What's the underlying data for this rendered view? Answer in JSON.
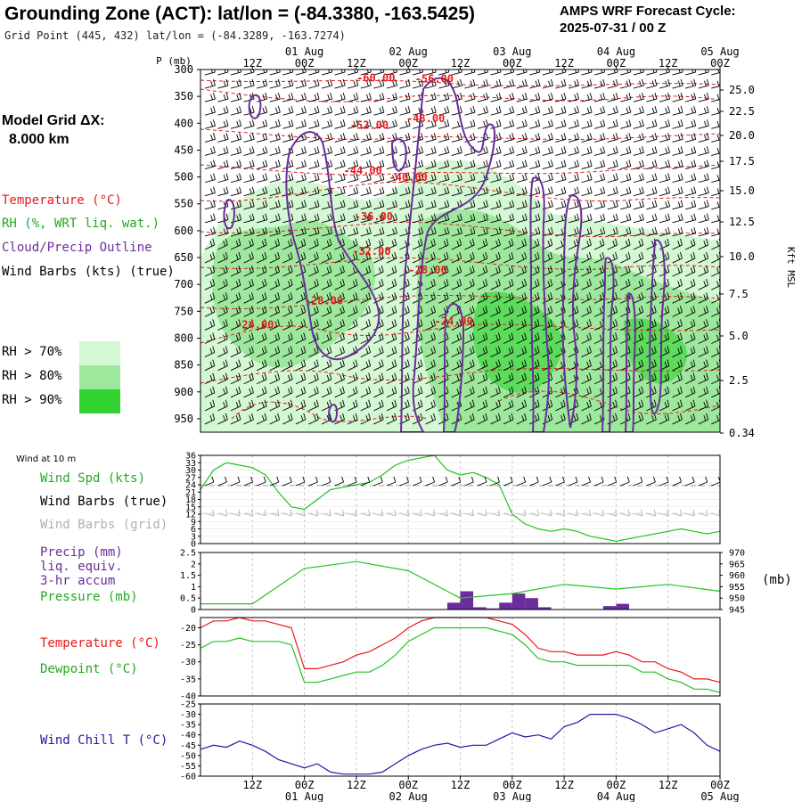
{
  "header": {
    "title": "Grounding Zone (ACT):  lat/lon = (-84.3380, -163.5425)",
    "subtitle": "Grid Point (445, 432) lat/lon = (-84.3289, -163.7274)",
    "cycle_line1": "AMPS WRF Forecast Cycle:",
    "cycle_line2": "2025-07-31 / 00  Z"
  },
  "legend": {
    "grid_dx_line1": "Model Grid ΔX:",
    "grid_dx_line2": "8.000 km",
    "temperature": "Temperature (°C)",
    "rh": "RH (%, WRT liq. wat.)",
    "cloud": "Cloud/Precip Outline",
    "wind": "Wind Barbs (kts) (true)",
    "rh70": "RH > 70%",
    "rh80": "RH > 80%",
    "rh90": "RH > 90%"
  },
  "colors": {
    "temperature": "#e8191b",
    "rh70": "#d4f7d4",
    "rh80": "#9ee89e",
    "rh90": "#32d232",
    "cloud": "#6a2d9b",
    "wind_spd": "#22c322",
    "dewpoint": "#22c322",
    "wind_chill": "#1a1aa8",
    "precip_bar": "#6a2d9b",
    "grid_barbs": "#b0b0b0"
  },
  "axis_labels": {
    "pressure": "P (mb)",
    "kft": "Kft MSL",
    "mb": "(mb)"
  },
  "time_ticks": {
    "hours": [
      "12Z",
      "00Z",
      "12Z",
      "00Z",
      "12Z",
      "00Z",
      "12Z",
      "00Z",
      "12Z",
      "00Z"
    ],
    "dates": [
      "01 Aug",
      "02 Aug",
      "03 Aug",
      "04 Aug",
      "05 Aug"
    ]
  },
  "panel_labels": {
    "wind10m": "Wind at 10 m",
    "wind_spd": "Wind Spd (kts)",
    "wind_barbs_true": "Wind Barbs (true)",
    "wind_barbs_grid": "Wind Barbs (grid)",
    "precip_1": "Precip (mm)",
    "precip_2": "liq. equiv.",
    "precip_3": "3-hr accum",
    "pressure": "Pressure (mb)",
    "temperature": "Temperature (°C)",
    "dewpoint": "Dewpoint (°C)",
    "wind_chill": "Wind Chill T (°C)"
  },
  "chart_data": [
    {
      "type": "heatmap",
      "title": "Grounding Zone (ACT):  lat/lon = (-84.3380, -163.5425)",
      "y_left_ticks": [
        300,
        350,
        400,
        450,
        500,
        550,
        600,
        650,
        700,
        750,
        800,
        850,
        900,
        950
      ],
      "y_right_ticks": [
        "25.0",
        "22.5",
        "20.0",
        "17.5",
        "15.0",
        "12.5",
        "10.0",
        "7.5",
        "5.0",
        "2.5",
        "0.34"
      ],
      "ylim": [
        300,
        975
      ],
      "xlim_hours": [
        0,
        120
      ],
      "temperature_contour_labels": [
        {
          "text": "-60.00",
          "hour": 40.5,
          "p": 322
        },
        {
          "text": "-56.00",
          "hour": 54,
          "p": 324
        },
        {
          "text": "-52.00",
          "hour": 39,
          "p": 410
        },
        {
          "text": "-48.00",
          "hour": 52,
          "p": 398
        },
        {
          "text": "-44.00",
          "hour": 37.5,
          "p": 495
        },
        {
          "text": "-40.00",
          "hour": 48,
          "p": 507
        },
        {
          "text": "-36.00",
          "hour": 40,
          "p": 580
        },
        {
          "text": "-32.00",
          "hour": 39.5,
          "p": 645
        },
        {
          "text": "-28.00",
          "hour": 52.5,
          "p": 680
        },
        {
          "text": "-28.00",
          "hour": 28.5,
          "p": 737
        },
        {
          "text": "-24.00",
          "hour": 12.5,
          "p": 782
        },
        {
          "text": "-24.00",
          "hour": 58.5,
          "p": 775
        }
      ]
    },
    {
      "type": "line",
      "title": "Wind Spd (kts)",
      "x_hours": [
        0,
        3,
        6,
        9,
        12,
        15,
        18,
        21,
        24,
        27,
        30,
        33,
        36,
        39,
        42,
        45,
        48,
        51,
        54,
        57,
        60,
        63,
        66,
        69,
        72,
        75,
        78,
        81,
        84,
        87,
        90,
        93,
        96,
        99,
        102,
        105,
        108,
        111,
        114,
        117,
        120
      ],
      "series": [
        {
          "name": "Wind Spd (kts)",
          "values": [
            22,
            30,
            33,
            32,
            31,
            28,
            21,
            15,
            14,
            18,
            22,
            23,
            24,
            25,
            28,
            32,
            34,
            35,
            36,
            30,
            28,
            29,
            27,
            24,
            12,
            8,
            6,
            5,
            6,
            5,
            3,
            2,
            1,
            2,
            3,
            4,
            5,
            6,
            5,
            4,
            5
          ]
        }
      ],
      "y_ticks": [
        0,
        3,
        6,
        9,
        12,
        15,
        18,
        21,
        24,
        27,
        30,
        33,
        36
      ],
      "ylim": [
        0,
        36
      ]
    },
    {
      "type": "bar",
      "title": "Precip (mm)",
      "x_hours": [
        57,
        60,
        63,
        66,
        69,
        72,
        75,
        78,
        93,
        96
      ],
      "values": [
        0.3,
        0.8,
        0.1,
        0.05,
        0.3,
        0.7,
        0.5,
        0.1,
        0.15,
        0.25
      ],
      "y_ticks": [
        0.0,
        0.5,
        1.0,
        1.5,
        2.0,
        2.5
      ],
      "ylim": [
        0,
        2.5
      ]
    },
    {
      "type": "line",
      "title": "Pressure (mb)",
      "x_hours": [
        0,
        12,
        24,
        36,
        48,
        60,
        66,
        72,
        84,
        96,
        108,
        120
      ],
      "series": [
        {
          "name": "Pressure (mb)",
          "values": [
            947.5,
            947.5,
            963,
            966,
            962,
            950,
            951,
            952,
            956,
            954,
            956,
            953
          ]
        }
      ],
      "y_ticks": [
        945,
        950,
        955,
        960,
        965,
        970
      ],
      "ylim": [
        945,
        970
      ]
    },
    {
      "type": "line",
      "title": "Temperature (°C)",
      "x_hours": [
        0,
        3,
        6,
        9,
        12,
        15,
        18,
        21,
        24,
        27,
        30,
        33,
        36,
        39,
        42,
        45,
        48,
        51,
        54,
        57,
        60,
        63,
        66,
        69,
        72,
        75,
        78,
        81,
        84,
        87,
        90,
        93,
        96,
        99,
        102,
        105,
        108,
        111,
        114,
        117,
        120
      ],
      "series": [
        {
          "name": "Temperature (°C)",
          "values": [
            -20,
            -18,
            -18,
            -17,
            -18,
            -18,
            -19,
            -20,
            -32,
            -32,
            -31,
            -30,
            -28,
            -27,
            -25,
            -23,
            -20,
            -18,
            -17,
            -17,
            -17,
            -17,
            -17,
            -18,
            -19,
            -22,
            -26,
            -27,
            -27,
            -28,
            -28,
            -28,
            -27,
            -28,
            -30,
            -30,
            -32,
            -33,
            -35,
            -35,
            -36
          ]
        },
        {
          "name": "Dewpoint (°C)",
          "values": [
            -26,
            -24,
            -24,
            -23,
            -24,
            -24,
            -24,
            -25,
            -36,
            -36,
            -35,
            -34,
            -33,
            -33,
            -31,
            -28,
            -24,
            -22,
            -20,
            -20,
            -20,
            -20,
            -20,
            -21,
            -22,
            -25,
            -29,
            -30,
            -30,
            -31,
            -31,
            -31,
            -31,
            -31,
            -33,
            -33,
            -35,
            -36,
            -38,
            -38,
            -39
          ]
        }
      ],
      "y_ticks": [
        -40,
        -35,
        -30,
        -25,
        -20
      ],
      "ylim": [
        -40,
        -17
      ]
    },
    {
      "type": "line",
      "title": "Wind Chill T (°C)",
      "x_hours": [
        0,
        3,
        6,
        9,
        12,
        15,
        18,
        21,
        24,
        27,
        30,
        33,
        36,
        39,
        42,
        45,
        48,
        51,
        54,
        57,
        60,
        63,
        66,
        69,
        72,
        75,
        78,
        81,
        84,
        87,
        90,
        93,
        96,
        99,
        102,
        105,
        108,
        111,
        114,
        117,
        120
      ],
      "series": [
        {
          "name": "Wind Chill T (°C)",
          "values": [
            -47,
            -45,
            -46,
            -43,
            -45,
            -48,
            -52,
            -54,
            -56,
            -54,
            -58,
            -59,
            -59,
            -59,
            -58,
            -54,
            -50,
            -47,
            -45,
            -44,
            -46,
            -45,
            -45,
            -42,
            -39,
            -41,
            -40,
            -42,
            -36,
            -34,
            -30,
            -30,
            -30,
            -32,
            -35,
            -39,
            -37,
            -35,
            -39,
            -45,
            -48
          ]
        }
      ],
      "y_ticks": [
        -60,
        -55,
        -50,
        -45,
        -40,
        -35,
        -30,
        -25
      ],
      "ylim": [
        -60,
        -25
      ]
    }
  ]
}
